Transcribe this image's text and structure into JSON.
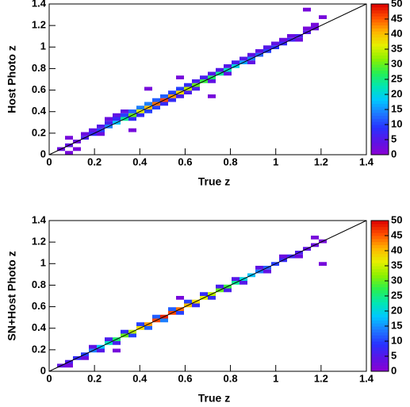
{
  "chart_data": [
    {
      "type": "heatmap",
      "xlabel": "True z",
      "ylabel": "Host Photo z",
      "xlim": [
        0,
        1.4
      ],
      "ylim": [
        0,
        1.4
      ],
      "xticks": [
        0,
        0.2,
        0.4,
        0.6,
        0.8,
        1,
        1.2,
        1.4
      ],
      "yticks": [
        0,
        0.2,
        0.4,
        0.6,
        0.8,
        1,
        1.2,
        1.4
      ],
      "bin_size": [
        0.035,
        0.035
      ],
      "zlim": [
        0,
        50
      ],
      "zticks": [
        0,
        5,
        10,
        15,
        20,
        25,
        30,
        35,
        40,
        45,
        50
      ],
      "palette": [
        "#8c00d2",
        "#5a14e6",
        "#2832ff",
        "#1e78ff",
        "#00c8ff",
        "#00e6b4",
        "#28f050",
        "#8cf000",
        "#e6f000",
        "#ffb400",
        "#ff5000",
        "#dc0000"
      ],
      "x": [
        0.0525,
        0.0875,
        0.0875,
        0.1225,
        0.1225,
        0.0875,
        0.1575,
        0.1575,
        0.1925,
        0.1925,
        0.2275,
        0.2275,
        0.2275,
        0.2625,
        0.2625,
        0.2625,
        0.2975,
        0.2975,
        0.2975,
        0.3325,
        0.3325,
        0.3325,
        0.3675,
        0.3675,
        0.3675,
        0.4025,
        0.4025,
        0.4025,
        0.4375,
        0.4375,
        0.4375,
        0.4725,
        0.4725,
        0.4725,
        0.5075,
        0.5075,
        0.5075,
        0.5425,
        0.5425,
        0.5425,
        0.5775,
        0.5775,
        0.5775,
        0.6125,
        0.6125,
        0.6125,
        0.6475,
        0.6475,
        0.6475,
        0.6825,
        0.6825,
        0.7175,
        0.7175,
        0.7175,
        0.7525,
        0.7525,
        0.7875,
        0.7875,
        0.7875,
        0.8225,
        0.8225,
        0.8575,
        0.8575,
        0.8925,
        0.8925,
        0.8925,
        0.9275,
        0.9275,
        0.9625,
        0.9625,
        0.9975,
        0.9975,
        1.0325,
        1.0325,
        1.0675,
        1.0675,
        1.1025,
        1.1025,
        1.1375,
        1.1375,
        1.1725,
        1.1725,
        1.1375,
        1.2075,
        0.4375,
        0.5775,
        0.3675,
        0.7175
      ],
      "y": [
        0.0525,
        0.0175,
        0.0875,
        0.0525,
        0.1225,
        0.1575,
        0.1575,
        0.1925,
        0.1925,
        0.2275,
        0.2275,
        0.2625,
        0.1925,
        0.2625,
        0.2975,
        0.3325,
        0.2975,
        0.3325,
        0.3675,
        0.3325,
        0.3675,
        0.4025,
        0.3675,
        0.4025,
        0.3325,
        0.4025,
        0.4375,
        0.3675,
        0.4375,
        0.4725,
        0.4025,
        0.4725,
        0.5075,
        0.4375,
        0.5075,
        0.5425,
        0.4725,
        0.5425,
        0.5775,
        0.5075,
        0.5775,
        0.6125,
        0.5425,
        0.6125,
        0.6475,
        0.5775,
        0.6475,
        0.6825,
        0.6125,
        0.6825,
        0.7175,
        0.7175,
        0.7525,
        0.6825,
        0.7525,
        0.7875,
        0.7875,
        0.8225,
        0.7525,
        0.8225,
        0.8575,
        0.8575,
        0.8925,
        0.8925,
        0.9275,
        0.8575,
        0.9275,
        0.9625,
        0.9625,
        0.9975,
        0.9975,
        1.0325,
        1.0325,
        1.0675,
        1.0675,
        1.1025,
        1.1025,
        1.0675,
        1.1375,
        1.1725,
        1.1725,
        1.2075,
        1.3475,
        1.2775,
        0.6125,
        0.7175,
        0.2275,
        0.5425
      ],
      "values": [
        3,
        2,
        4,
        2,
        3,
        2,
        6,
        3,
        8,
        4,
        10,
        5,
        3,
        14,
        6,
        3,
        18,
        8,
        4,
        24,
        10,
        4,
        30,
        12,
        8,
        36,
        14,
        8,
        40,
        14,
        10,
        44,
        12,
        10,
        46,
        12,
        8,
        42,
        10,
        8,
        38,
        10,
        6,
        34,
        8,
        6,
        30,
        6,
        6,
        28,
        6,
        26,
        5,
        4,
        24,
        5,
        22,
        5,
        4,
        20,
        6,
        16,
        5,
        14,
        4,
        4,
        12,
        4,
        10,
        5,
        9,
        4,
        8,
        3,
        7,
        3,
        6,
        3,
        5,
        2,
        3,
        2,
        2,
        2,
        2,
        2,
        2,
        2
      ]
    },
    {
      "type": "heatmap",
      "xlabel": "True z",
      "ylabel": "SN+Host Photo z",
      "xlim": [
        0,
        1.4
      ],
      "ylim": [
        0,
        1.4
      ],
      "xticks": [
        0,
        0.2,
        0.4,
        0.6,
        0.8,
        1,
        1.2,
        1.4
      ],
      "yticks": [
        0,
        0.2,
        0.4,
        0.6,
        0.8,
        1,
        1.2,
        1.4
      ],
      "bin_size": [
        0.035,
        0.035
      ],
      "zlim": [
        0,
        50
      ],
      "zticks": [
        0,
        5,
        10,
        15,
        20,
        25,
        30,
        35,
        40,
        45,
        50
      ],
      "palette": [
        "#8c00d2",
        "#5a14e6",
        "#2832ff",
        "#1e78ff",
        "#00c8ff",
        "#00e6b4",
        "#28f050",
        "#8cf000",
        "#e6f000",
        "#ffb400",
        "#ff5000",
        "#dc0000"
      ],
      "x": [
        0.0525,
        0.0875,
        0.0875,
        0.1225,
        0.1575,
        0.1575,
        0.1925,
        0.1925,
        0.2275,
        0.2275,
        0.2625,
        0.2625,
        0.2975,
        0.2975,
        0.3325,
        0.3325,
        0.3675,
        0.3675,
        0.4025,
        0.4025,
        0.4375,
        0.4375,
        0.4725,
        0.4725,
        0.5075,
        0.5075,
        0.5425,
        0.5425,
        0.5775,
        0.5775,
        0.6125,
        0.6125,
        0.6475,
        0.6475,
        0.6825,
        0.6825,
        0.7175,
        0.7175,
        0.7525,
        0.7525,
        0.7875,
        0.7875,
        0.8225,
        0.8225,
        0.8575,
        0.8575,
        0.8925,
        0.9275,
        0.9275,
        0.9625,
        0.9625,
        0.9975,
        1.0325,
        1.0325,
        1.0675,
        1.1025,
        1.1025,
        1.1375,
        1.1725,
        1.1725,
        1.2075,
        1.2075,
        0.2975,
        0.5775
      ],
      "y": [
        0.0525,
        0.0525,
        0.0875,
        0.1225,
        0.1575,
        0.1225,
        0.1925,
        0.2275,
        0.2275,
        0.1925,
        0.2625,
        0.2975,
        0.2975,
        0.2625,
        0.3325,
        0.3675,
        0.3675,
        0.3325,
        0.4025,
        0.4375,
        0.4375,
        0.4025,
        0.4725,
        0.5075,
        0.5075,
        0.4725,
        0.5425,
        0.5775,
        0.5775,
        0.5425,
        0.6125,
        0.6475,
        0.6475,
        0.6125,
        0.6825,
        0.7175,
        0.7175,
        0.6825,
        0.7525,
        0.7875,
        0.7875,
        0.7525,
        0.8225,
        0.8575,
        0.8575,
        0.8225,
        0.8925,
        0.9275,
        0.9625,
        0.9625,
        0.9275,
        0.9975,
        1.0325,
        1.0675,
        1.0675,
        1.1025,
        1.0675,
        1.1375,
        1.1725,
        1.2425,
        1.2075,
        0.9975,
        0.1925,
        0.6825
      ],
      "values": [
        4,
        2,
        6,
        8,
        10,
        3,
        14,
        4,
        18,
        5,
        22,
        6,
        26,
        6,
        30,
        8,
        34,
        10,
        38,
        10,
        42,
        12,
        46,
        12,
        48,
        14,
        46,
        12,
        44,
        10,
        40,
        10,
        38,
        8,
        36,
        8,
        34,
        8,
        30,
        6,
        28,
        6,
        24,
        5,
        20,
        5,
        18,
        14,
        4,
        12,
        4,
        10,
        8,
        3,
        7,
        6,
        3,
        4,
        3,
        2,
        2,
        2,
        2,
        2
      ]
    }
  ]
}
